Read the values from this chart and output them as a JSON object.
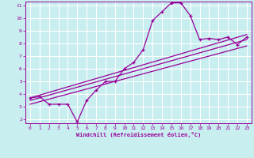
{
  "xlabel": "Windchill (Refroidissement éolien,°C)",
  "xlim": [
    -0.5,
    23.5
  ],
  "ylim": [
    1.7,
    11.3
  ],
  "xticks": [
    0,
    1,
    2,
    3,
    4,
    5,
    6,
    7,
    8,
    9,
    10,
    11,
    12,
    13,
    14,
    15,
    16,
    17,
    18,
    19,
    20,
    21,
    22,
    23
  ],
  "yticks": [
    2,
    3,
    4,
    5,
    6,
    7,
    8,
    9,
    10,
    11
  ],
  "bg_color": "#c8eef0",
  "grid_color": "#ffffff",
  "line_color": "#990099",
  "line1_x": [
    0,
    1,
    2,
    3,
    4,
    5,
    6,
    7,
    8,
    9,
    10,
    11,
    12,
    13,
    14,
    15,
    16,
    17,
    18,
    19,
    20,
    21,
    22,
    23
  ],
  "line1_y": [
    3.7,
    3.8,
    3.2,
    3.2,
    3.2,
    1.8,
    3.5,
    4.3,
    5.0,
    5.0,
    6.0,
    6.5,
    7.5,
    9.8,
    10.5,
    11.2,
    11.2,
    10.2,
    8.3,
    8.4,
    8.3,
    8.5,
    7.9,
    8.5
  ],
  "line2_x": [
    0,
    23
  ],
  "line2_y": [
    3.7,
    8.7
  ],
  "line3_x": [
    0,
    23
  ],
  "line3_y": [
    3.5,
    8.3
  ],
  "line4_x": [
    0,
    23
  ],
  "line4_y": [
    3.2,
    7.8
  ]
}
